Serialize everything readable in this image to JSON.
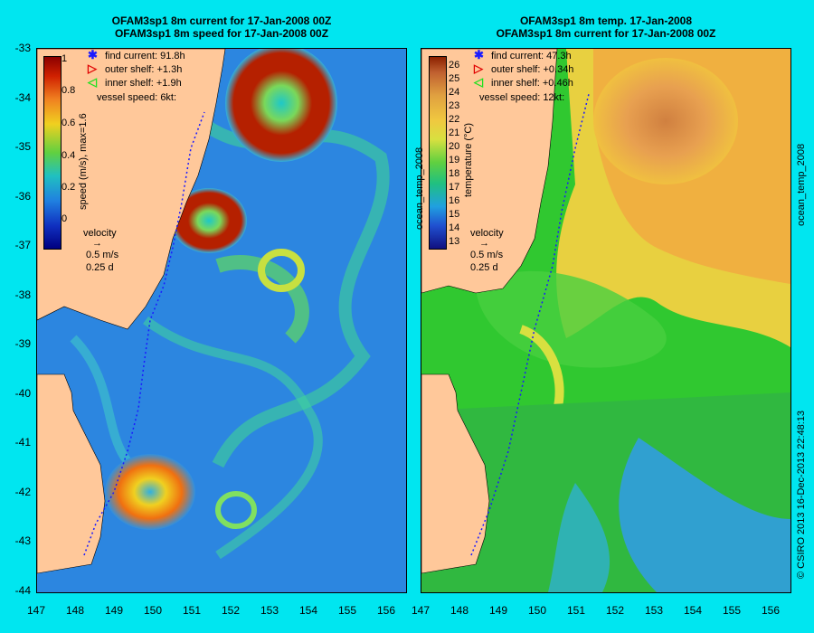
{
  "left": {
    "title1": "OFAM3sp1 8m current for 17-Jan-2008 00Z",
    "title2": "OFAM3sp1 8m speed for 17-Jan-2008 00Z",
    "legend": {
      "find": "find current: 91.8h",
      "outer": "outer shelf: +1.3h",
      "inner": "inner shelf: +1.9h",
      "vessel": "vessel speed: 6kt:"
    },
    "colorbar_label": "speed (m/s), max=1.6",
    "colorbar_ticks": [
      "1",
      "0.8",
      "0.6",
      "0.4",
      "0.2",
      "0"
    ],
    "velocity_label": "velocity",
    "velocity_scale": "0.5 m/s",
    "velocity_time": "0.25 d"
  },
  "right": {
    "title1": "OFAM3sp1 8m temp. 17-Jan-2008",
    "title2": "OFAM3sp1 8m current for 17-Jan-2008 00Z",
    "legend": {
      "find": "find current: 47.3h",
      "outer": "outer shelf: +0.34h",
      "inner": "inner shelf: +0.46h",
      "vessel": "vessel speed: 12kt:"
    },
    "colorbar_label": "temperature (°C)",
    "colorbar_side_label": "ocean_temp_2008",
    "colorbar_ticks": [
      "26",
      "25",
      "24",
      "23",
      "22",
      "21",
      "20",
      "19",
      "18",
      "17",
      "16",
      "15",
      "14",
      "13"
    ],
    "velocity_label": "velocity",
    "velocity_scale": "0.5 m/s",
    "velocity_time": "0.25 d",
    "side_label": "ocean_temp_2008"
  },
  "y_ticks": [
    "-33",
    "-34",
    "-35",
    "-36",
    "-37",
    "-38",
    "-39",
    "-40",
    "-41",
    "-42",
    "-43",
    "-44"
  ],
  "x_ticks": [
    "147",
    "148",
    "149",
    "150",
    "151",
    "152",
    "153",
    "154",
    "155",
    "156"
  ],
  "footer": "© CSIRO 2013   16-Dec-2013 22:48:13",
  "colors": {
    "background": "#00e6f0",
    "land": "#ffc89a",
    "find_symbol": "#1a1aff",
    "outer_symbol": "#e00000",
    "inner_symbol": "#20e020"
  }
}
